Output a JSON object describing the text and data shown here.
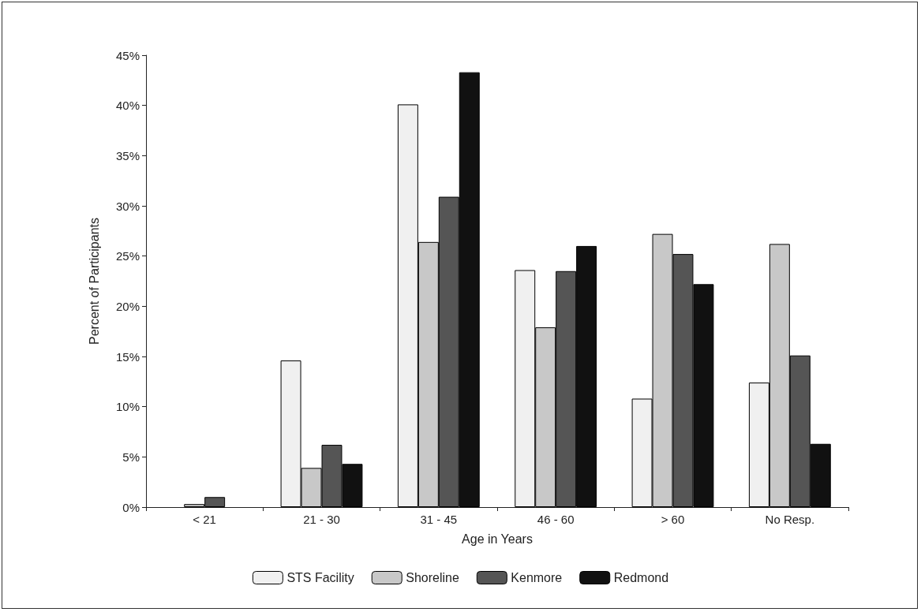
{
  "chart_data": {
    "type": "bar",
    "xlabel": "Age in Years",
    "ylabel": "Percent of Participants",
    "categories": [
      "< 21",
      "21 - 30",
      "31 - 45",
      "46 - 60",
      "> 60",
      "No Resp."
    ],
    "series": [
      {
        "name": "STS Facility",
        "color": "#f0f0f0",
        "values": [
          0,
          14.6,
          40.1,
          23.6,
          10.8,
          12.4
        ]
      },
      {
        "name": "Shoreline",
        "color": "#c8c8c8",
        "values": [
          0.3,
          3.9,
          26.4,
          17.9,
          27.2,
          26.2
        ]
      },
      {
        "name": "Kenmore",
        "color": "#555555",
        "values": [
          1.0,
          6.2,
          30.9,
          23.5,
          25.2,
          15.1
        ]
      },
      {
        "name": "Redmond",
        "color": "#111111",
        "values": [
          0,
          4.3,
          43.3,
          26.0,
          22.2,
          6.3
        ]
      }
    ],
    "ylim": [
      0,
      45
    ],
    "yticks": [
      {
        "value": 0,
        "label": "0%"
      },
      {
        "value": 5,
        "label": "5%"
      },
      {
        "value": 10,
        "label": "10%"
      },
      {
        "value": 15,
        "label": "15%"
      },
      {
        "value": 20,
        "label": "20%"
      },
      {
        "value": 25,
        "label": "25%"
      },
      {
        "value": 30,
        "label": "30%"
      },
      {
        "value": 35,
        "label": "35%"
      },
      {
        "value": 40,
        "label": "40%"
      },
      {
        "value": 45,
        "label": "45%"
      }
    ],
    "grid": false,
    "legend": "bottom"
  }
}
